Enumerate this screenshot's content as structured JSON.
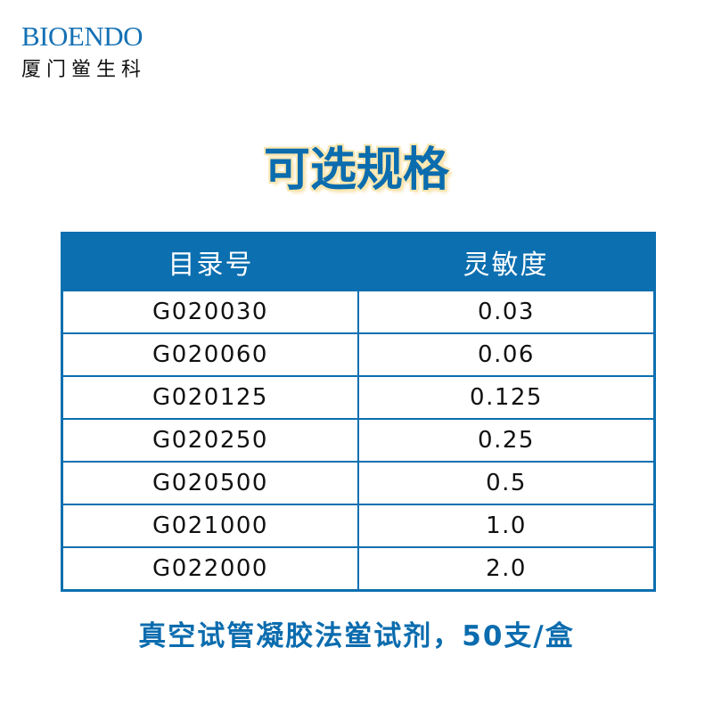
{
  "logo": {
    "brand": "BIOENDO",
    "company": "厦门鲎生科"
  },
  "title": "可选规格",
  "table": {
    "headers": [
      "目录号",
      "灵敏度"
    ],
    "rows": [
      [
        "G020030",
        "0.03"
      ],
      [
        "G020060",
        "0.06"
      ],
      [
        "G020125",
        "0.125"
      ],
      [
        "G020250",
        "0.25"
      ],
      [
        "G020500",
        "0.5"
      ],
      [
        "G021000",
        "1.0"
      ],
      [
        "G022000",
        "2.0"
      ]
    ]
  },
  "footer": "真空试管凝胶法鲎试剂，50支/盒",
  "colors": {
    "accent": "#0b6fb0",
    "title_glow": "#fbe7b0"
  }
}
